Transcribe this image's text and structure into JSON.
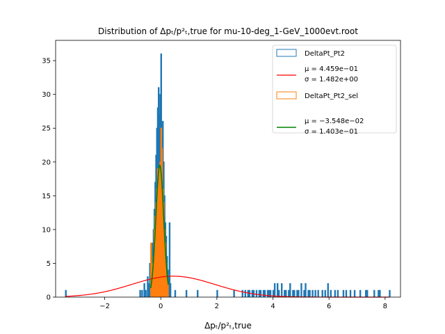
{
  "chart_data": {
    "type": "histogram",
    "title": "Distribution of Δpₜ/p²ₜ,true for mu-10-deg_1-GeV_1000evt.root",
    "xlabel": "Δpₜ/p²ₜ,true",
    "ylabel": "",
    "xlim": [
      -3.75,
      8.55
    ],
    "ylim": [
      0,
      38
    ],
    "xticks": [
      -2,
      0,
      2,
      4,
      6,
      8
    ],
    "yticks": [
      0,
      5,
      10,
      15,
      20,
      25,
      30,
      35
    ],
    "grid": false,
    "legend_position": "top-right",
    "legend": [
      {
        "label": "DeltaPt_Pt2",
        "kind": "hist",
        "color": "#1f77b4"
      },
      {
        "label": "μ = 4.459e−01",
        "label2": "σ = 1.482e+00",
        "kind": "line",
        "color": "#ff0000"
      },
      {
        "label": "DeltaPt_Pt2_sel",
        "kind": "hist",
        "color": "#ff7f0e"
      },
      {
        "label": "μ = −3.548e−02",
        "label2": "σ = 1.403e−01",
        "kind": "line",
        "color": "#008000"
      }
    ],
    "series": [
      {
        "name": "DeltaPt_Pt2",
        "kind": "histogram",
        "color": "#1f77b4",
        "bins": [
          [
            -3.4,
            1
          ],
          [
            -0.75,
            1
          ],
          [
            -0.68,
            1
          ],
          [
            -0.6,
            2
          ],
          [
            -0.55,
            1
          ],
          [
            -0.48,
            3
          ],
          [
            -0.44,
            2
          ],
          [
            -0.4,
            5
          ],
          [
            -0.36,
            4
          ],
          [
            -0.33,
            6
          ],
          [
            -0.3,
            8
          ],
          [
            -0.27,
            10
          ],
          [
            -0.24,
            13
          ],
          [
            -0.21,
            17
          ],
          [
            -0.18,
            21
          ],
          [
            -0.15,
            25
          ],
          [
            -0.12,
            28
          ],
          [
            -0.09,
            31
          ],
          [
            -0.06,
            27
          ],
          [
            -0.03,
            30
          ],
          [
            0.0,
            36
          ],
          [
            0.03,
            24
          ],
          [
            0.06,
            26
          ],
          [
            0.09,
            20
          ],
          [
            0.12,
            15
          ],
          [
            0.15,
            11
          ],
          [
            0.18,
            9
          ],
          [
            0.21,
            6
          ],
          [
            0.24,
            4
          ],
          [
            0.27,
            3
          ],
          [
            0.3,
            11
          ],
          [
            0.33,
            2
          ],
          [
            0.5,
            1
          ],
          [
            0.9,
            1
          ],
          [
            1.3,
            1
          ],
          [
            2.0,
            1
          ],
          [
            2.6,
            1
          ],
          [
            2.9,
            1
          ],
          [
            3.0,
            1
          ],
          [
            3.1,
            1
          ],
          [
            3.15,
            1
          ],
          [
            3.25,
            1
          ],
          [
            3.3,
            1
          ],
          [
            3.4,
            1
          ],
          [
            3.5,
            1
          ],
          [
            3.55,
            1
          ],
          [
            3.65,
            1
          ],
          [
            3.7,
            1
          ],
          [
            3.8,
            1
          ],
          [
            3.85,
            1
          ],
          [
            3.9,
            1
          ],
          [
            4.0,
            1
          ],
          [
            4.05,
            2
          ],
          [
            4.15,
            2
          ],
          [
            4.2,
            1
          ],
          [
            4.3,
            2
          ],
          [
            4.4,
            1
          ],
          [
            4.45,
            1
          ],
          [
            4.55,
            1
          ],
          [
            4.6,
            2
          ],
          [
            4.7,
            1
          ],
          [
            4.75,
            1
          ],
          [
            4.85,
            1
          ],
          [
            4.9,
            1
          ],
          [
            5.0,
            2
          ],
          [
            5.1,
            1
          ],
          [
            5.15,
            2
          ],
          [
            5.25,
            1
          ],
          [
            5.3,
            1
          ],
          [
            5.4,
            1
          ],
          [
            5.5,
            1
          ],
          [
            5.6,
            1
          ],
          [
            5.75,
            1
          ],
          [
            5.85,
            1
          ],
          [
            5.95,
            2
          ],
          [
            6.05,
            1
          ],
          [
            6.2,
            1
          ],
          [
            6.3,
            1
          ],
          [
            6.5,
            1
          ],
          [
            6.6,
            1
          ],
          [
            6.75,
            1
          ],
          [
            6.9,
            1
          ],
          [
            7.1,
            1
          ],
          [
            7.3,
            1
          ],
          [
            7.35,
            1
          ],
          [
            7.6,
            1
          ],
          [
            7.75,
            1
          ],
          [
            7.8,
            1
          ],
          [
            8.15,
            1
          ]
        ],
        "bin_width": 0.03
      },
      {
        "name": "DeltaPt_Pt2_sel",
        "kind": "histogram",
        "color": "#ff7f0e",
        "bins": [
          [
            -0.36,
            8
          ],
          [
            -0.33,
            5
          ],
          [
            -0.3,
            4
          ],
          [
            -0.27,
            6
          ],
          [
            -0.24,
            10
          ],
          [
            -0.21,
            12
          ],
          [
            -0.18,
            14
          ],
          [
            -0.15,
            16
          ],
          [
            -0.12,
            19
          ],
          [
            -0.09,
            17
          ],
          [
            -0.06,
            19
          ],
          [
            -0.03,
            20
          ],
          [
            0.0,
            25
          ],
          [
            0.03,
            22
          ],
          [
            0.06,
            16
          ],
          [
            0.09,
            14
          ],
          [
            0.12,
            10
          ],
          [
            0.15,
            8
          ],
          [
            0.18,
            5
          ],
          [
            0.21,
            3
          ],
          [
            0.24,
            2
          ]
        ],
        "bin_width": 0.03
      },
      {
        "name": "μ = 4.459e−01  σ = 1.482e+00",
        "kind": "gaussian",
        "color": "#ff0000",
        "mu": 0.4459,
        "sigma": 1.482,
        "amplitude": 3.1,
        "range": [
          -3.4,
          8.15
        ]
      },
      {
        "name": "μ = −3.548e−02  σ = 1.403e−01",
        "kind": "gaussian",
        "color": "#008000",
        "mu": -0.03548,
        "sigma": 0.1403,
        "amplitude": 19.5,
        "range": [
          -0.36,
          0.27
        ]
      }
    ]
  }
}
